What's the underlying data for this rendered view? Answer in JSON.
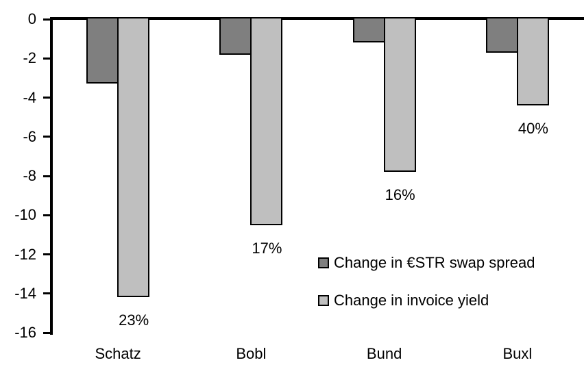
{
  "chart_data": {
    "type": "bar",
    "categories": [
      "Schatz",
      "Bobl",
      "Bund",
      "Buxl"
    ],
    "series": [
      {
        "name": "Change in €STR swap spread",
        "color": "#7f7f7f",
        "values": [
          -3.3,
          -1.8,
          -1.2,
          -1.7
        ]
      },
      {
        "name": "Change in invoice yield",
        "color": "#bfbfbf",
        "values": [
          -14.2,
          -10.5,
          -7.8,
          -4.4
        ]
      }
    ],
    "bar_labels": {
      "series": "Change in invoice yield",
      "values": [
        "23%",
        "17%",
        "16%",
        "40%"
      ]
    },
    "title": "",
    "xlabel": "",
    "ylabel": "",
    "ylim": [
      -16,
      0
    ],
    "yticks": [
      0,
      -2,
      -4,
      -6,
      -8,
      -10,
      -12,
      -14,
      -16
    ],
    "grid": false,
    "legend_position": "inside-lower-right",
    "axis_color": "#000000",
    "background": "#ffffff"
  }
}
